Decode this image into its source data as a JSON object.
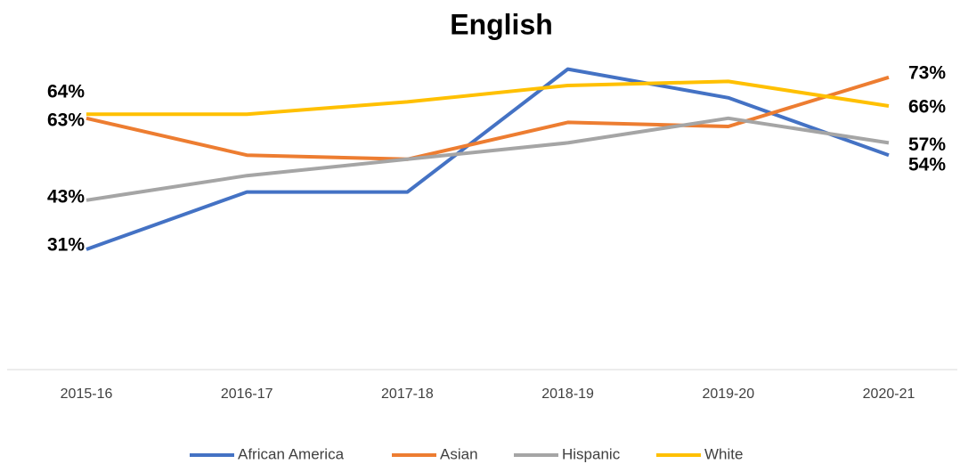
{
  "chart_data": {
    "type": "line",
    "title": "English",
    "categories": [
      "2015-16",
      "2016-17",
      "2017-18",
      "2018-19",
      "2019-20",
      "2020-21"
    ],
    "series": [
      {
        "name": "African America",
        "color": "#4472c4",
        "values": [
          31,
          45,
          45,
          75,
          68,
          54
        ],
        "value_labels": [
          "31%",
          null,
          null,
          null,
          null,
          "54%"
        ]
      },
      {
        "name": "Asian",
        "color": "#ed7d31",
        "values": [
          63,
          54,
          53,
          62,
          61,
          73
        ],
        "value_labels": [
          "63%",
          null,
          null,
          null,
          null,
          "73%"
        ]
      },
      {
        "name": "Hispanic",
        "color": "#a5a5a5",
        "values": [
          43,
          49,
          53,
          57,
          63,
          57
        ],
        "value_labels": [
          "43%",
          null,
          null,
          null,
          null,
          "57%"
        ]
      },
      {
        "name": "White",
        "color": "#ffc000",
        "values": [
          64,
          64,
          67,
          71,
          72,
          66
        ],
        "value_labels": [
          "64%",
          null,
          null,
          null,
          null,
          "66%"
        ]
      }
    ],
    "legend": "bottom"
  }
}
